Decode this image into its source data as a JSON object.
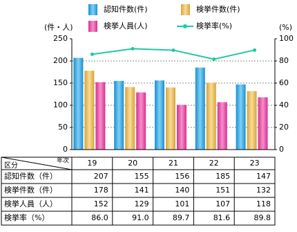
{
  "chart_data": {
    "type": "bar",
    "y_label": "(件・人)",
    "y2_label": "(%)",
    "categories": [
      "19",
      "20",
      "21",
      "22",
      "23"
    ],
    "series": [
      {
        "name": "認知件数(件)",
        "color": "#36a9e1",
        "values": [
          207,
          155,
          156,
          185,
          147
        ]
      },
      {
        "name": "検挙件数(件)",
        "color": "#e9bf5c",
        "values": [
          178,
          141,
          140,
          151,
          132
        ]
      },
      {
        "name": "検挙人員(人)",
        "color": "#e64aa6",
        "values": [
          152,
          129,
          101,
          107,
          118
        ]
      },
      {
        "name": "検挙率(%)",
        "color": "#1fc9a3",
        "type": "line",
        "axis": "y2",
        "values": [
          86.0,
          91.0,
          89.7,
          81.6,
          89.8
        ],
        "value_labels": [
          "86.0",
          "91.0",
          "89.7",
          "81.6",
          "89.8"
        ]
      }
    ],
    "ylim": [
      0,
      250
    ],
    "yticks": [
      0,
      50,
      100,
      150,
      200,
      250
    ],
    "y2lim": [
      0,
      100
    ],
    "y2ticks": [
      0,
      20,
      40,
      60,
      80,
      100
    ],
    "grid": true,
    "table": {
      "corner_col": "年次",
      "corner_row": "区分",
      "row_labels": [
        "認知件数（件）",
        "検挙件数（件）",
        "検挙人員（人）",
        "検挙率（%）"
      ]
    }
  }
}
